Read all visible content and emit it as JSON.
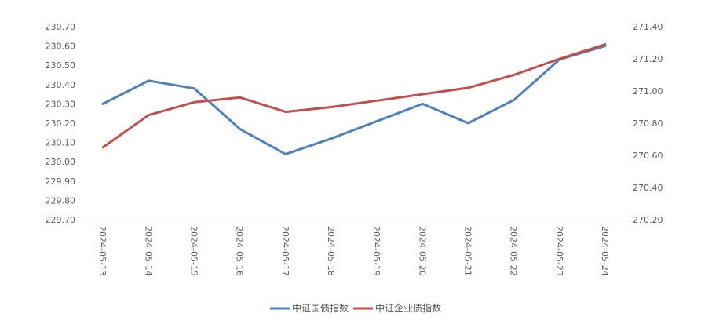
{
  "chart_data": {
    "type": "line",
    "title": "",
    "xlabel": "",
    "ylabel": "",
    "categories": [
      "2024-05-13",
      "2024-05-14",
      "2024-05-15",
      "2024-05-16",
      "2024-05-17",
      "2024-05-18",
      "2024-05-19",
      "2024-05-20",
      "2024-05-21",
      "2024-05-22",
      "2024-05-23",
      "2024-05-24"
    ],
    "y_left": {
      "ylim": [
        229.7,
        230.7
      ],
      "ticks": [
        "229.70",
        "229.80",
        "229.90",
        "230.00",
        "230.10",
        "230.20",
        "230.30",
        "230.40",
        "230.50",
        "230.60",
        "230.70"
      ]
    },
    "y_right": {
      "ylim": [
        270.2,
        271.4
      ],
      "ticks": [
        "270.20",
        "270.40",
        "270.60",
        "270.80",
        "271.00",
        "271.20",
        "271.40"
      ]
    },
    "series": [
      {
        "name": "中证国债指数",
        "axis": "left",
        "color": "#4f81bd",
        "values": [
          230.3,
          230.42,
          230.38,
          230.17,
          230.04,
          230.12,
          230.21,
          230.3,
          230.2,
          230.32,
          230.53,
          230.6
        ]
      },
      {
        "name": "中证企业债指数",
        "axis": "right",
        "color": "#c0504d",
        "values": [
          270.65,
          270.85,
          270.93,
          270.96,
          270.87,
          270.9,
          270.94,
          270.98,
          271.02,
          271.1,
          271.2,
          271.29
        ]
      }
    ],
    "legend_position": "bottom",
    "grid": false
  }
}
